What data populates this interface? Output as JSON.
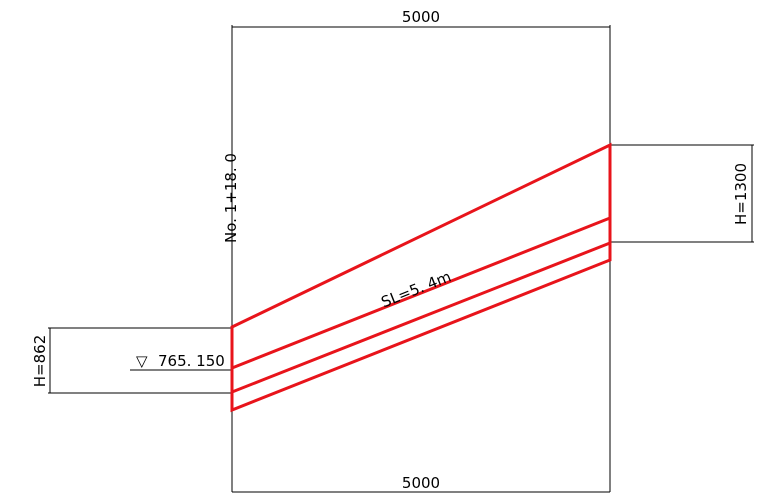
{
  "dimensions": {
    "top_width": "5000",
    "bottom_width": "5000",
    "left_height": "H=862",
    "right_height": "H=1300"
  },
  "labels": {
    "station": "No. 1+18. 0",
    "water_level_symbol": "▽",
    "water_level": "765. 150",
    "slope_length": "SL=5. 4m"
  },
  "colors": {
    "structure": "#e8141b",
    "dimension": "#000000"
  }
}
